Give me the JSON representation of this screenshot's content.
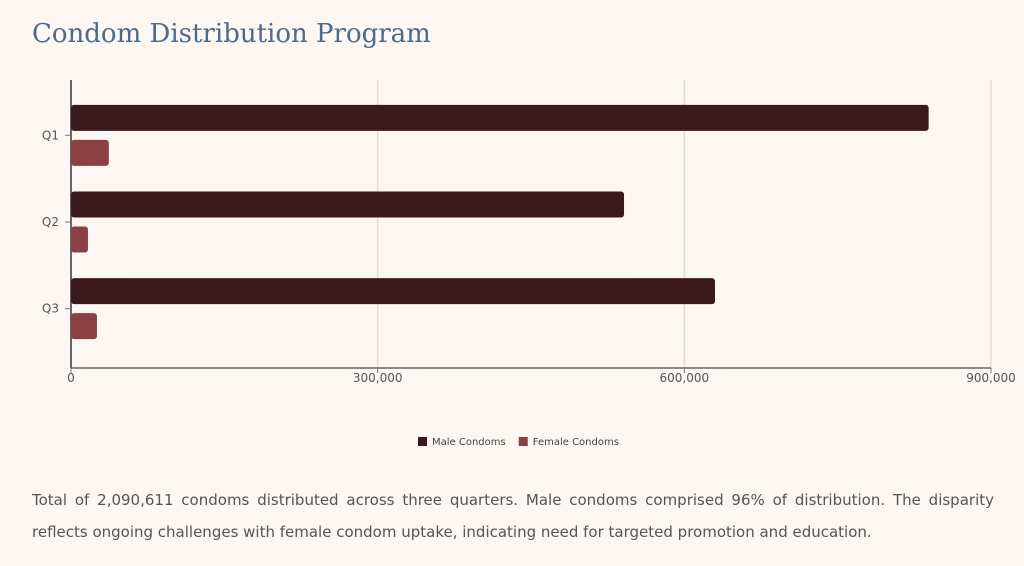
{
  "chart_data": {
    "type": "hbar",
    "title": "Condom Distribution Program",
    "categories": [
      "Q1",
      "Q2",
      "Q3"
    ],
    "series": [
      {
        "name": "Male Condoms",
        "color": "#3a1a1e",
        "values": [
          839000,
          541000,
          630000
        ]
      },
      {
        "name": "Female Condoms",
        "color": "#8b4043",
        "values": [
          37000,
          16600,
          25400
        ]
      }
    ],
    "xlim": [
      0,
      900000
    ],
    "xticks": [
      0,
      {
        "value": 300000,
        "label": "300,000"
      },
      {
        "value": 600000,
        "label": "600,000"
      },
      {
        "value": 900000,
        "label": "900,000"
      }
    ],
    "grid": true,
    "legend": "bottom"
  },
  "description": "Total of 2,090,611 condoms distributed across three quarters. Male condoms comprised 96% of distribution. The disparity reflects ongoing challenges with female condom uptake, indicating need for targeted promotion and education."
}
